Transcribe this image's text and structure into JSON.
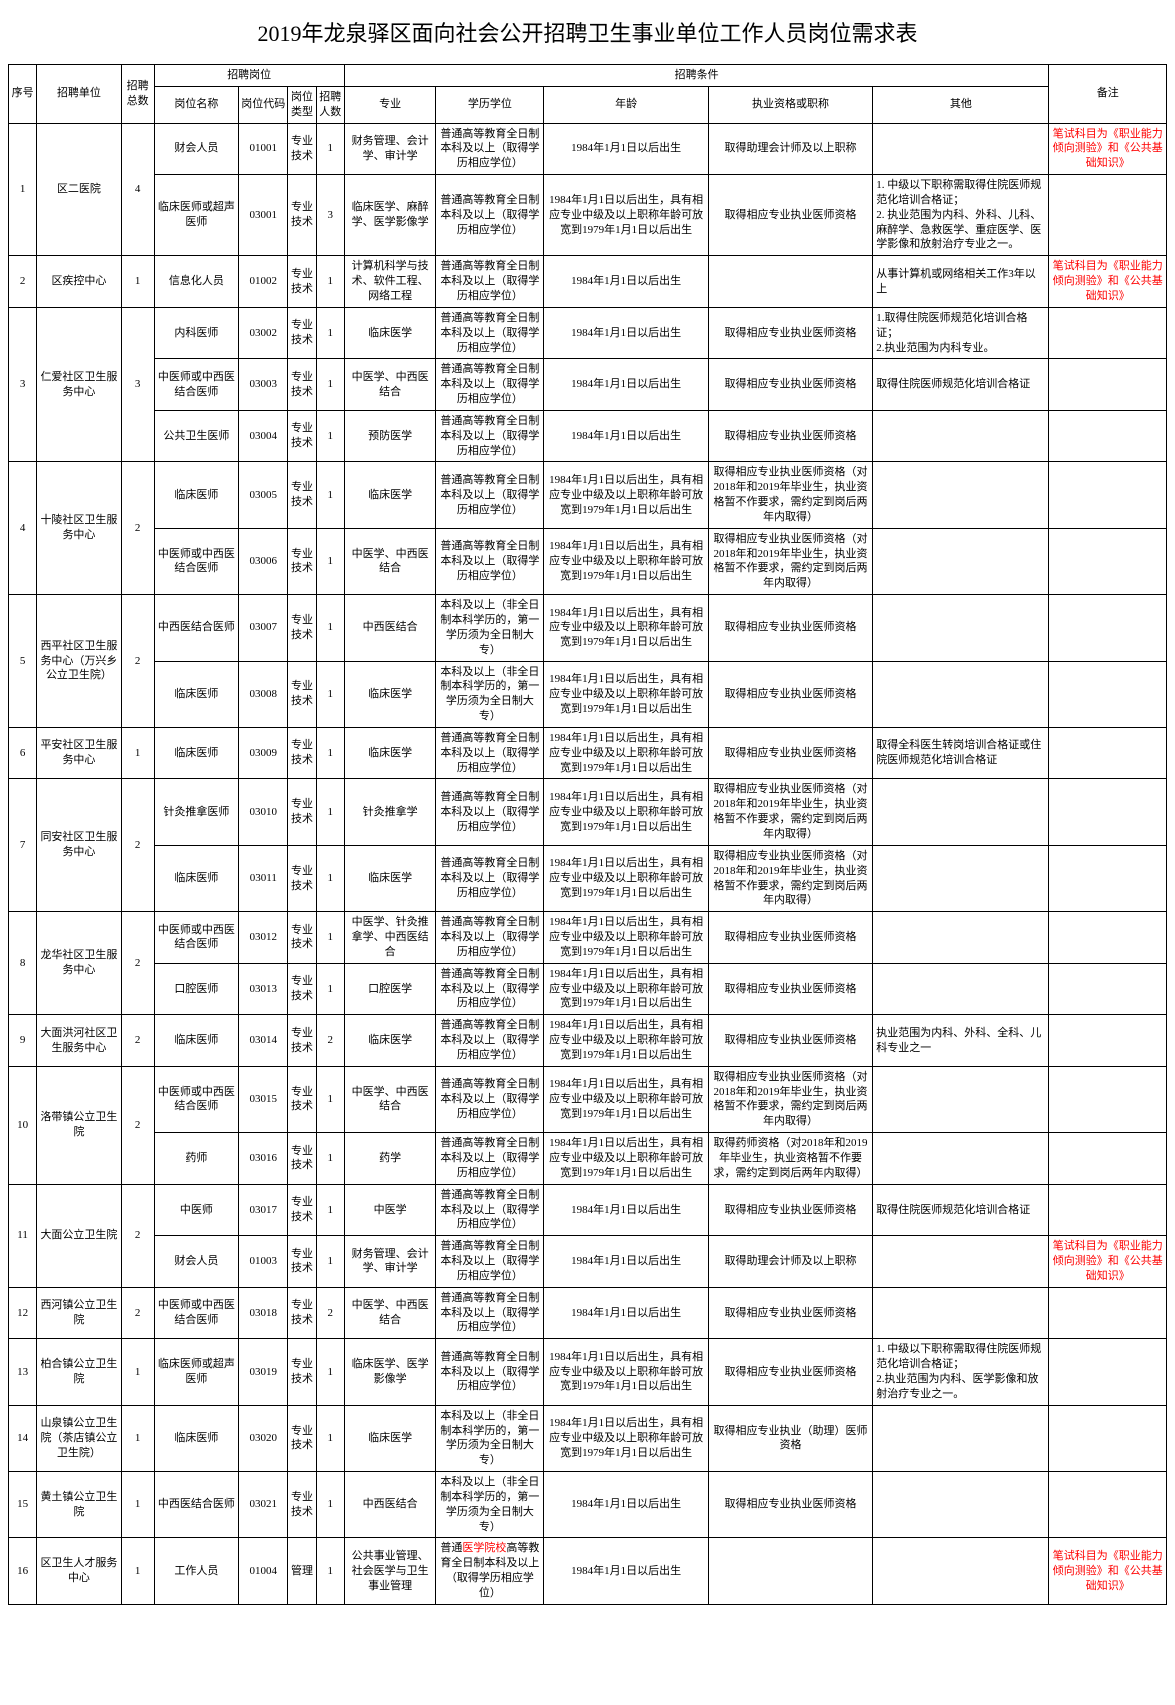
{
  "title": "2019年龙泉驿区面向社会公开招聘卫生事业单位工作人员岗位需求表",
  "headers": {
    "seq": "序号",
    "unit": "招聘单位",
    "total": "招聘总数",
    "post_group": "招聘岗位",
    "post_name": "岗位名称",
    "post_code": "岗位代码",
    "post_type": "岗位类型",
    "post_num": "招聘人数",
    "cond_group": "招聘条件",
    "major": "专业",
    "edu": "学历学位",
    "age": "年龄",
    "cert": "执业资格或职称",
    "other": "其他",
    "note": "备注"
  },
  "note_red_prefix": "笔试科目为《",
  "note_red_mid": "职业能力倾向测验",
  "note_red_mid2": "》和《",
  "note_red_mid3": "公共基础知识",
  "note_red_suffix": "》",
  "rows": [
    {
      "seq": "1",
      "unit": "区二医院",
      "total": "4",
      "rowspan": 2,
      "posts": [
        {
          "pname": "财会人员",
          "pcode": "01001",
          "ptype": "专业技术",
          "pnum": "1",
          "major": "财务管理、会计学、审计学",
          "edu": "普通高等教育全日制本科及以上（取得学历相应学位）",
          "age": "1984年1月1日以后出生",
          "cert": "取得助理会计师及以上职称",
          "other": "",
          "note_red": true
        },
        {
          "pname": "临床医师或超声医师",
          "pcode": "03001",
          "ptype": "专业技术",
          "pnum": "3",
          "major": "临床医学、麻醉学、医学影像学",
          "edu": "普通高等教育全日制本科及以上（取得学历相应学位）",
          "age": "1984年1月1日以后出生，具有相应专业中级及以上职称年龄可放宽到1979年1月1日以后出生",
          "cert": "取得相应专业执业医师资格",
          "other": "1. 中级以下职称需取得住院医师规范化培训合格证；\n2. 执业范围为内科、外科、儿科、麻醉学、急救医学、重症医学、医学影像和放射治疗专业之一。",
          "note": ""
        }
      ]
    },
    {
      "seq": "2",
      "unit": "区疾控中心",
      "total": "1",
      "rowspan": 1,
      "posts": [
        {
          "pname": "信息化人员",
          "pcode": "01002",
          "ptype": "专业技术",
          "pnum": "1",
          "major": "计算机科学与技术、软件工程、网络工程",
          "edu": "普通高等教育全日制本科及以上（取得学历相应学位）",
          "age": "1984年1月1日以后出生",
          "cert": "",
          "other": "从事计算机或网络相关工作3年以上",
          "note_red": true
        }
      ]
    },
    {
      "seq": "3",
      "unit": "仁爱社区卫生服务中心",
      "total": "3",
      "rowspan": 3,
      "posts": [
        {
          "pname": "内科医师",
          "pcode": "03002",
          "ptype": "专业技术",
          "pnum": "1",
          "major": "临床医学",
          "edu": "普通高等教育全日制本科及以上（取得学历相应学位）",
          "age": "1984年1月1日以后出生",
          "cert": "取得相应专业执业医师资格",
          "other": "1.取得住院医师规范化培训合格证；\n2.执业范围为内科专业。",
          "note": ""
        },
        {
          "pname": "中医师或中西医结合医师",
          "pcode": "03003",
          "ptype": "专业技术",
          "pnum": "1",
          "major": "中医学、中西医结合",
          "edu": "普通高等教育全日制本科及以上（取得学历相应学位）",
          "age": "1984年1月1日以后出生",
          "cert": "取得相应专业执业医师资格",
          "other": "取得住院医师规范化培训合格证",
          "note": ""
        },
        {
          "pname": "公共卫生医师",
          "pcode": "03004",
          "ptype": "专业技术",
          "pnum": "1",
          "major": "预防医学",
          "edu": "普通高等教育全日制本科及以上（取得学历相应学位）",
          "age": "1984年1月1日以后出生",
          "cert": "取得相应专业执业医师资格",
          "other": "",
          "note": ""
        }
      ]
    },
    {
      "seq": "4",
      "unit": "十陵社区卫生服务中心",
      "total": "2",
      "rowspan": 2,
      "posts": [
        {
          "pname": "临床医师",
          "pcode": "03005",
          "ptype": "专业技术",
          "pnum": "1",
          "major": "临床医学",
          "edu": "普通高等教育全日制本科及以上（取得学历相应学位）",
          "age": "1984年1月1日以后出生，具有相应专业中级及以上职称年龄可放宽到1979年1月1日以后出生",
          "cert": "取得相应专业执业医师资格（对2018年和2019年毕业生，执业资格暂不作要求，需约定到岗后两年内取得）",
          "other": "",
          "note": ""
        },
        {
          "pname": "中医师或中西医结合医师",
          "pcode": "03006",
          "ptype": "专业技术",
          "pnum": "1",
          "major": "中医学、中西医结合",
          "edu": "普通高等教育全日制本科及以上（取得学历相应学位）",
          "age": "1984年1月1日以后出生，具有相应专业中级及以上职称年龄可放宽到1979年1月1日以后出生",
          "cert": "取得相应专业执业医师资格（对2018年和2019年毕业生，执业资格暂不作要求，需约定到岗后两年内取得）",
          "other": "",
          "note": ""
        }
      ]
    },
    {
      "seq": "5",
      "unit": "西平社区卫生服务中心（万兴乡公立卫生院）",
      "total": "2",
      "rowspan": 2,
      "posts": [
        {
          "pname": "中西医结合医师",
          "pcode": "03007",
          "ptype": "专业技术",
          "pnum": "1",
          "major": "中西医结合",
          "edu": "本科及以上（非全日制本科学历的，第一学历须为全日制大专）",
          "age": "1984年1月1日以后出生，具有相应专业中级及以上职称年龄可放宽到1979年1月1日以后出生",
          "cert": "取得相应专业执业医师资格",
          "other": "",
          "note": ""
        },
        {
          "pname": "临床医师",
          "pcode": "03008",
          "ptype": "专业技术",
          "pnum": "1",
          "major": "临床医学",
          "edu": "本科及以上（非全日制本科学历的，第一学历须为全日制大专）",
          "age": "1984年1月1日以后出生，具有相应专业中级及以上职称年龄可放宽到1979年1月1日以后出生",
          "cert": "取得相应专业执业医师资格",
          "other": "",
          "note": ""
        }
      ]
    },
    {
      "seq": "6",
      "unit": "平安社区卫生服务中心",
      "total": "1",
      "rowspan": 1,
      "posts": [
        {
          "pname": "临床医师",
          "pcode": "03009",
          "ptype": "专业技术",
          "pnum": "1",
          "major": "临床医学",
          "edu": "普通高等教育全日制本科及以上（取得学历相应学位）",
          "age": "1984年1月1日以后出生，具有相应专业中级及以上职称年龄可放宽到1979年1月1日以后出生",
          "cert": "取得相应专业执业医师资格",
          "other": "取得全科医生转岗培训合格证或住院医师规范化培训合格证",
          "note": ""
        }
      ]
    },
    {
      "seq": "7",
      "unit": "同安社区卫生服务中心",
      "total": "2",
      "rowspan": 2,
      "posts": [
        {
          "pname": "针灸推拿医师",
          "pcode": "03010",
          "ptype": "专业技术",
          "pnum": "1",
          "major": "针灸推拿学",
          "edu": "普通高等教育全日制本科及以上（取得学历相应学位）",
          "age": "1984年1月1日以后出生，具有相应专业中级及以上职称年龄可放宽到1979年1月1日以后出生",
          "cert": "取得相应专业执业医师资格（对2018年和2019年毕业生，执业资格暂不作要求，需约定到岗后两年内取得）",
          "other": "",
          "note": ""
        },
        {
          "pname": "临床医师",
          "pcode": "03011",
          "ptype": "专业技术",
          "pnum": "1",
          "major": "临床医学",
          "edu": "普通高等教育全日制本科及以上（取得学历相应学位）",
          "age": "1984年1月1日以后出生，具有相应专业中级及以上职称年龄可放宽到1979年1月1日以后出生",
          "cert": "取得相应专业执业医师资格（对2018年和2019年毕业生，执业资格暂不作要求，需约定到岗后两年内取得）",
          "other": "",
          "note": ""
        }
      ]
    },
    {
      "seq": "8",
      "unit": "龙华社区卫生服务中心",
      "total": "2",
      "rowspan": 2,
      "posts": [
        {
          "pname": "中医师或中西医结合医师",
          "pcode": "03012",
          "ptype": "专业技术",
          "pnum": "1",
          "major": "中医学、针灸推拿学、中西医结合",
          "edu": "普通高等教育全日制本科及以上（取得学历相应学位）",
          "age": "1984年1月1日以后出生，具有相应专业中级及以上职称年龄可放宽到1979年1月1日以后出生",
          "cert": "取得相应专业执业医师资格",
          "other": "",
          "note": ""
        },
        {
          "pname": "口腔医师",
          "pcode": "03013",
          "ptype": "专业技术",
          "pnum": "1",
          "major": "口腔医学",
          "edu": "普通高等教育全日制本科及以上（取得学历相应学位）",
          "age": "1984年1月1日以后出生，具有相应专业中级及以上职称年龄可放宽到1979年1月1日以后出生",
          "cert": "取得相应专业执业医师资格",
          "other": "",
          "note": ""
        }
      ]
    },
    {
      "seq": "9",
      "unit": "大面洪河社区卫生服务中心",
      "total": "2",
      "rowspan": 1,
      "posts": [
        {
          "pname": "临床医师",
          "pcode": "03014",
          "ptype": "专业技术",
          "pnum": "2",
          "major": "临床医学",
          "edu": "普通高等教育全日制本科及以上（取得学历相应学位）",
          "age": "1984年1月1日以后出生，具有相应专业中级及以上职称年龄可放宽到1979年1月1日以后出生",
          "cert": "取得相应专业执业医师资格",
          "other": "执业范围为内科、外科、全科、儿科专业之一",
          "note": ""
        }
      ]
    },
    {
      "seq": "10",
      "unit": "洛带镇公立卫生院",
      "total": "2",
      "rowspan": 2,
      "posts": [
        {
          "pname": "中医师或中西医结合医师",
          "pcode": "03015",
          "ptype": "专业技术",
          "pnum": "1",
          "major": "中医学、中西医结合",
          "edu": "普通高等教育全日制本科及以上（取得学历相应学位）",
          "age": "1984年1月1日以后出生，具有相应专业中级及以上职称年龄可放宽到1979年1月1日以后出生",
          "cert": "取得相应专业执业医师资格（对2018年和2019年毕业生，执业资格暂不作要求，需约定到岗后两年内取得）",
          "other": "",
          "note": ""
        },
        {
          "pname": "药师",
          "pcode": "03016",
          "ptype": "专业技术",
          "pnum": "1",
          "major": "药学",
          "edu": "普通高等教育全日制本科及以上（取得学历相应学位）",
          "age": "1984年1月1日以后出生，具有相应专业中级及以上职称年龄可放宽到1979年1月1日以后出生",
          "cert": "取得药师资格（对2018年和2019年毕业生，执业资格暂不作要求，需约定到岗后两年内取得）",
          "other": "",
          "note": ""
        }
      ]
    },
    {
      "seq": "11",
      "unit": "大面公立卫生院",
      "total": "2",
      "rowspan": 2,
      "posts": [
        {
          "pname": "中医师",
          "pcode": "03017",
          "ptype": "专业技术",
          "pnum": "1",
          "major": "中医学",
          "edu": "普通高等教育全日制本科及以上（取得学历相应学位）",
          "age": "1984年1月1日以后出生",
          "cert": "取得相应专业执业医师资格",
          "other": "取得住院医师规范化培训合格证",
          "note": ""
        },
        {
          "pname": "财会人员",
          "pcode": "01003",
          "ptype": "专业技术",
          "pnum": "1",
          "major": "财务管理、会计学、审计学",
          "edu": "普通高等教育全日制本科及以上（取得学历相应学位）",
          "age": "1984年1月1日以后出生",
          "cert": "取得助理会计师及以上职称",
          "other": "",
          "note_red": true
        }
      ]
    },
    {
      "seq": "12",
      "unit": "西河镇公立卫生院",
      "total": "2",
      "rowspan": 1,
      "posts": [
        {
          "pname": "中医师或中西医结合医师",
          "pcode": "03018",
          "ptype": "专业技术",
          "pnum": "2",
          "major": "中医学、中西医结合",
          "edu": "普通高等教育全日制本科及以上（取得学历相应学位）",
          "age": "1984年1月1日以后出生",
          "cert": "取得相应专业执业医师资格",
          "other": "",
          "note": ""
        }
      ]
    },
    {
      "seq": "13",
      "unit": "柏合镇公立卫生院",
      "total": "1",
      "rowspan": 1,
      "posts": [
        {
          "pname": "临床医师或超声医师",
          "pcode": "03019",
          "ptype": "专业技术",
          "pnum": "1",
          "major": "临床医学、医学影像学",
          "edu": "普通高等教育全日制本科及以上（取得学历相应学位）",
          "age": "1984年1月1日以后出生，具有相应专业中级及以上职称年龄可放宽到1979年1月1日以后出生",
          "cert": "取得相应专业执业医师资格",
          "other": "1. 中级以下职称需取得住院医师规范化培训合格证；\n2.执业范围为内科、医学影像和放射治疗专业之一。",
          "note": ""
        }
      ]
    },
    {
      "seq": "14",
      "unit": "山泉镇公立卫生院（茶店镇公立卫生院）",
      "total": "1",
      "rowspan": 1,
      "posts": [
        {
          "pname": "临床医师",
          "pcode": "03020",
          "ptype": "专业技术",
          "pnum": "1",
          "major": "临床医学",
          "edu": "本科及以上（非全日制本科学历的，第一学历须为全日制大专）",
          "age": "1984年1月1日以后出生，具有相应专业中级及以上职称年龄可放宽到1979年1月1日以后出生",
          "cert": "取得相应专业执业（助理）医师资格",
          "other": "",
          "note": ""
        }
      ]
    },
    {
      "seq": "15",
      "unit": "黄土镇公立卫生院",
      "total": "1",
      "rowspan": 1,
      "posts": [
        {
          "pname": "中西医结合医师",
          "pcode": "03021",
          "ptype": "专业技术",
          "pnum": "1",
          "major": "中西医结合",
          "edu": "本科及以上（非全日制本科学历的，第一学历须为全日制大专）",
          "age": "1984年1月1日以后出生",
          "cert": "取得相应专业执业医师资格",
          "other": "",
          "note": ""
        }
      ]
    },
    {
      "seq": "16",
      "unit": "区卫生人才服务中心",
      "total": "1",
      "rowspan": 1,
      "posts": [
        {
          "pname": "工作人员",
          "pcode": "01004",
          "ptype": "管理",
          "pnum": "1",
          "major": "公共事业管理、社会医学与卫生事业管理",
          "edu_special": true,
          "edu_p1": "普通",
          "edu_red": "医学院校",
          "edu_p2": "高等教育全日制本科及以上（取得学历相应学位）",
          "age": "1984年1月1日以后出生",
          "cert": "",
          "other": "",
          "note_red": true
        }
      ]
    }
  ]
}
